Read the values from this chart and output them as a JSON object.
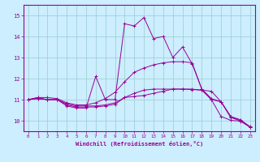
{
  "xlabel": "Windchill (Refroidissement éolien,°C)",
  "xlim": [
    -0.5,
    23.5
  ],
  "ylim": [
    9.5,
    15.5
  ],
  "yticks": [
    10,
    11,
    12,
    13,
    14,
    15
  ],
  "xticks": [
    0,
    1,
    2,
    3,
    4,
    5,
    6,
    7,
    8,
    9,
    10,
    11,
    12,
    13,
    14,
    15,
    16,
    17,
    18,
    19,
    20,
    21,
    22,
    23
  ],
  "bg_color": "#cceeff",
  "line_color": "#990099",
  "grid_color": "#99cccc",
  "lines": [
    {
      "x": [
        0,
        1,
        2,
        3,
        4,
        5,
        6,
        7,
        8,
        9,
        10,
        11,
        12,
        13,
        14,
        15,
        16,
        17,
        18,
        19,
        20,
        21,
        22,
        23
      ],
      "y": [
        11.0,
        11.1,
        11.0,
        11.0,
        10.7,
        10.6,
        10.6,
        12.1,
        11.0,
        11.0,
        14.6,
        14.5,
        14.9,
        13.9,
        14.0,
        13.0,
        13.5,
        12.7,
        11.5,
        11.0,
        10.9,
        10.2,
        10.0,
        9.7
      ]
    },
    {
      "x": [
        0,
        1,
        2,
        3,
        4,
        5,
        6,
        7,
        8,
        9,
        10,
        11,
        12,
        13,
        14,
        15,
        16,
        17,
        18,
        19,
        20,
        21,
        22,
        23
      ],
      "y": [
        11.0,
        11.05,
        11.0,
        11.0,
        10.8,
        10.7,
        10.7,
        10.7,
        10.75,
        10.85,
        11.1,
        11.15,
        11.2,
        11.3,
        11.4,
        11.5,
        11.5,
        11.5,
        11.45,
        11.4,
        10.9,
        10.15,
        10.0,
        9.7
      ]
    },
    {
      "x": [
        0,
        1,
        2,
        3,
        4,
        5,
        6,
        7,
        8,
        9,
        10,
        11,
        12,
        13,
        14,
        15,
        16,
        17,
        18,
        19,
        20,
        21,
        22,
        23
      ],
      "y": [
        11.0,
        11.1,
        11.1,
        11.05,
        10.85,
        10.75,
        10.75,
        10.85,
        11.05,
        11.35,
        11.85,
        12.3,
        12.5,
        12.65,
        12.75,
        12.8,
        12.8,
        12.75,
        11.5,
        11.05,
        10.9,
        10.2,
        10.05,
        9.72
      ]
    },
    {
      "x": [
        0,
        1,
        2,
        3,
        4,
        5,
        6,
        7,
        8,
        9,
        10,
        11,
        12,
        13,
        14,
        15,
        16,
        17,
        18,
        19,
        20,
        21,
        22,
        23
      ],
      "y": [
        11.0,
        11.05,
        11.0,
        11.0,
        10.75,
        10.65,
        10.65,
        10.65,
        10.7,
        10.78,
        11.1,
        11.3,
        11.45,
        11.5,
        11.5,
        11.5,
        11.5,
        11.48,
        11.45,
        11.0,
        10.2,
        10.02,
        9.98,
        9.7
      ]
    }
  ]
}
